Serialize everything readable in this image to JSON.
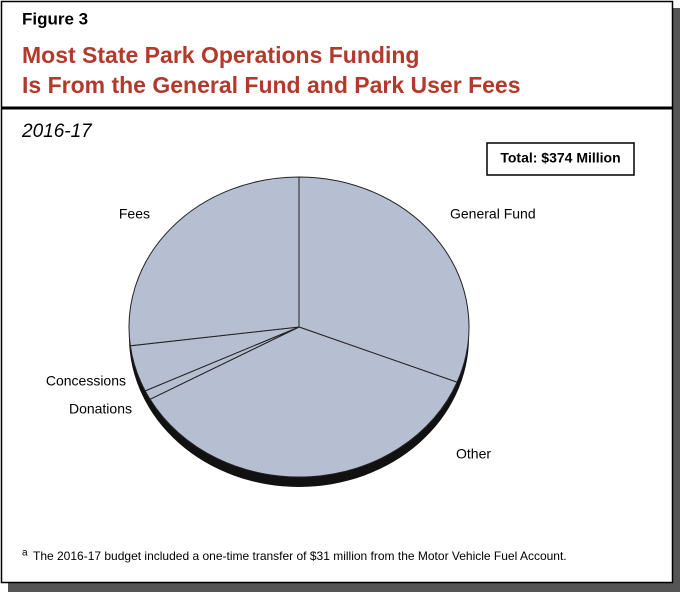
{
  "chart_data": {
    "type": "pie",
    "figure_label": "Figure 3",
    "title_lines": [
      "Most State Park Operations Funding",
      "Is From the General Fund and Park User Fees"
    ],
    "subtitle": "2016-17",
    "total_label": "Total: $374 Million",
    "categories": [
      "General Fund",
      "Other",
      "Donations",
      "Concessions",
      "Fees"
    ],
    "values": [
      31,
      36,
      1,
      5,
      27
    ],
    "color": "#b6bfd1",
    "footnote_marker": "a",
    "footnote": "The 2016-17 budget included a one-time transfer of $31 million from the Motor Vehicle Fuel Account."
  }
}
